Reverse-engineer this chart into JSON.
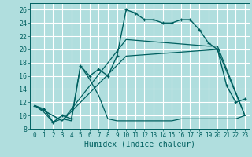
{
  "xlabel": "Humidex (Indice chaleur)",
  "bg_color": "#b0dede",
  "grid_color": "#d0f0f0",
  "line_color": "#006060",
  "xlim": [
    -0.5,
    23.5
  ],
  "ylim": [
    8,
    27
  ],
  "xticks": [
    0,
    1,
    2,
    3,
    4,
    5,
    6,
    7,
    8,
    9,
    10,
    11,
    12,
    13,
    14,
    15,
    16,
    17,
    18,
    19,
    20,
    21,
    22,
    23
  ],
  "yticks": [
    8,
    10,
    12,
    14,
    16,
    18,
    20,
    22,
    24,
    26
  ],
  "curve1_x": [
    0,
    1,
    2,
    3,
    4,
    5,
    6,
    7,
    8,
    9,
    10,
    11,
    12,
    13,
    14,
    15,
    16,
    17,
    18,
    19,
    20,
    21,
    22,
    23
  ],
  "curve1_y": [
    11.5,
    11.0,
    9.0,
    10.0,
    9.5,
    17.5,
    16.0,
    17.0,
    16.0,
    19.0,
    26.0,
    25.5,
    24.5,
    24.5,
    24.0,
    24.0,
    24.5,
    24.5,
    23.0,
    21.0,
    20.0,
    14.5,
    12.0,
    12.5
  ],
  "curve2_x": [
    0,
    1,
    2,
    3,
    4,
    5,
    6,
    7,
    8,
    9,
    10,
    11,
    12,
    13,
    14,
    15,
    16,
    17,
    18,
    19,
    20,
    21,
    22,
    23
  ],
  "curve2_y": [
    11.5,
    10.5,
    9.0,
    9.5,
    9.2,
    17.5,
    15.5,
    13.0,
    9.5,
    9.2,
    9.2,
    9.2,
    9.2,
    9.2,
    9.2,
    9.2,
    9.5,
    9.5,
    9.5,
    9.5,
    9.5,
    9.5,
    9.5,
    10.0
  ],
  "curve3_x": [
    0,
    3,
    10,
    19,
    20,
    23
  ],
  "curve3_y": [
    11.5,
    9.2,
    21.5,
    20.5,
    20.5,
    10.0
  ],
  "curve4_x": [
    0,
    3,
    10,
    20,
    23
  ],
  "curve4_y": [
    11.5,
    9.2,
    19.0,
    20.0,
    10.0
  ],
  "xlabel_fontsize": 7,
  "tick_fontsize": 5.5,
  "ytick_fontsize": 6
}
